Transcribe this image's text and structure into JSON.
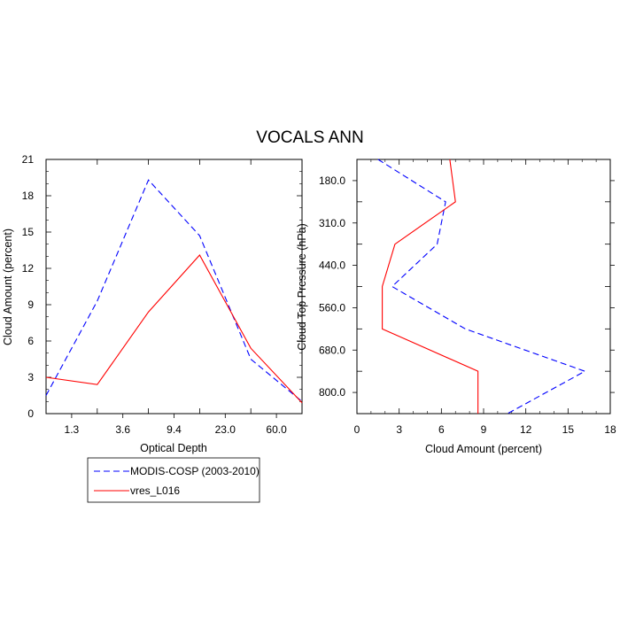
{
  "colors": {
    "obs": "#0000ff",
    "model": "#ff0000",
    "axis": "#000000"
  },
  "chart_data": [
    {
      "type": "line",
      "title": "VOCALS ANN",
      "xlabel": "Optical Depth",
      "ylabel": "Cloud Amount (percent)",
      "xticks": [
        "1.3",
        "3.6",
        "9.4",
        "23.0",
        "60.0"
      ],
      "ylim": [
        0,
        21
      ],
      "yticks": [
        0,
        3,
        6,
        9,
        12,
        15,
        18,
        21
      ],
      "x_positions": [
        0,
        1,
        2,
        3,
        4,
        5,
        6
      ],
      "series": [
        {
          "name": "MODIS-COSP (2003-2010)",
          "style": "dashed",
          "color": "#0000ff",
          "values": [
            1.5,
            9.3,
            19.3,
            14.7,
            4.5,
            1.0
          ]
        },
        {
          "name": "vres_L016",
          "style": "solid",
          "color": "#ff0000",
          "values": [
            3.0,
            2.4,
            8.4,
            13.1,
            5.4,
            0.9
          ]
        }
      ]
    },
    {
      "type": "line",
      "xlabel": "Cloud Amount (percent)",
      "ylabel": "Cloud Top Pressure (hPa)",
      "xlim": [
        0,
        18
      ],
      "xticks": [
        0,
        3,
        6,
        9,
        12,
        15,
        18
      ],
      "yticks": [
        "180.0",
        "310.0",
        "440.0",
        "560.0",
        "680.0",
        "800.0"
      ],
      "series": [
        {
          "name": "MODIS-COSP (2003-2010)",
          "style": "dashed",
          "color": "#0000ff",
          "x": [
            1.5,
            6.3,
            5.7,
            2.5,
            7.7,
            16.2,
            10.7
          ]
        },
        {
          "name": "vres_L016",
          "style": "solid",
          "color": "#ff0000",
          "x": [
            6.6,
            7.0,
            2.7,
            1.8,
            1.8,
            8.6,
            8.6
          ]
        }
      ]
    }
  ],
  "legend": [
    {
      "label": "MODIS-COSP (2003-2010)",
      "style": "dashed",
      "color": "#0000ff"
    },
    {
      "label": "vres_L016",
      "style": "solid",
      "color": "#ff0000"
    }
  ]
}
